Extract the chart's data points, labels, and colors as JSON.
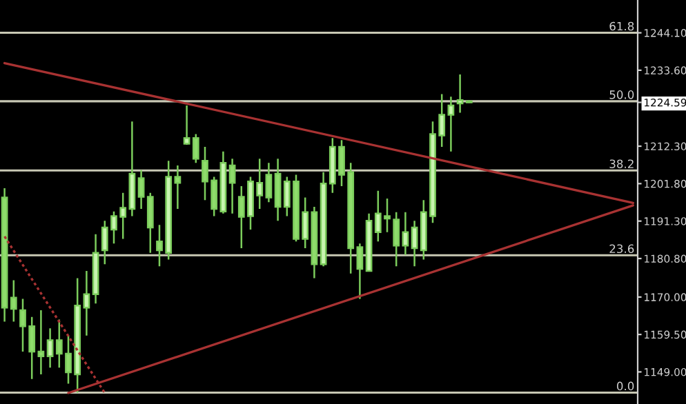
{
  "chart_data": {
    "type": "candlestick",
    "categories": [
      null,
      null,
      null,
      null,
      null,
      null,
      null,
      null,
      null,
      null,
      null,
      null,
      null,
      null,
      null,
      null,
      null,
      null,
      null,
      null,
      null,
      null,
      null,
      null,
      null,
      null,
      null,
      null,
      null,
      null,
      null,
      null,
      null,
      null,
      null,
      null,
      null,
      null,
      null,
      null,
      null,
      null,
      null,
      null,
      null,
      null,
      null,
      null,
      null,
      null,
      null,
      null,
      null,
      null,
      null,
      null,
      null,
      null,
      null,
      null,
      null,
      null,
      null,
      null,
      null,
      null,
      null,
      null,
      null,
      null
    ],
    "ohlc": [
      [
        1197.9,
        1200.5,
        1163.1,
        1167.0
      ],
      [
        1169.8,
        1174.7,
        1163.1,
        1166.7
      ],
      [
        1166.3,
        1169.5,
        1154.7,
        1161.8
      ],
      [
        1161.8,
        1164.4,
        1147.0,
        1154.7
      ],
      [
        1154.7,
        1166.3,
        1148.3,
        1153.4
      ],
      [
        1153.4,
        1161.2,
        1150.2,
        1157.9
      ],
      [
        1157.9,
        1163.7,
        1150.2,
        1154.1
      ],
      [
        1154.1,
        1159.2,
        1145.7,
        1148.9
      ],
      [
        1148.3,
        1175.3,
        1143.2,
        1167.6
      ],
      [
        1167.0,
        1177.3,
        1159.2,
        1170.8
      ],
      [
        1170.8,
        1187.6,
        1168.2,
        1182.4
      ],
      [
        1183.1,
        1191.4,
        1179.2,
        1189.5
      ],
      [
        1188.9,
        1194.0,
        1185.0,
        1192.7
      ],
      [
        1192.5,
        1199.2,
        1186.3,
        1195.0
      ],
      [
        1194.7,
        1219.2,
        1192.7,
        1204.6
      ],
      [
        1203.3,
        1205.6,
        1194.7,
        1198.1
      ],
      [
        1198.1,
        1199.2,
        1182.4,
        1189.5
      ],
      [
        1185.6,
        1190.2,
        1178.6,
        1183.1
      ],
      [
        1182.4,
        1208.2,
        1180.5,
        1203.7
      ],
      [
        1203.7,
        1206.9,
        1194.7,
        1202.0
      ],
      [
        1213.0,
        1223.7,
        1212.7,
        1214.6
      ],
      [
        1214.6,
        1215.7,
        1207.6,
        1208.8
      ],
      [
        1208.2,
        1212.1,
        1197.2,
        1202.4
      ],
      [
        1202.7,
        1203.7,
        1192.7,
        1194.7
      ],
      [
        1194.0,
        1210.8,
        1193.4,
        1207.6
      ],
      [
        1206.9,
        1208.8,
        1193.4,
        1202.0
      ],
      [
        1198.1,
        1201.1,
        1183.7,
        1192.5
      ],
      [
        1192.7,
        1203.7,
        1188.9,
        1202.4
      ],
      [
        1198.5,
        1208.8,
        1194.7,
        1202.0
      ],
      [
        1204.3,
        1207.6,
        1196.6,
        1197.9
      ],
      [
        1204.6,
        1208.8,
        1191.4,
        1195.3
      ],
      [
        1195.3,
        1203.7,
        1192.7,
        1202.4
      ],
      [
        1202.4,
        1204.3,
        1185.6,
        1186.3
      ],
      [
        1186.3,
        1197.9,
        1183.7,
        1193.8
      ],
      [
        1193.8,
        1195.3,
        1175.3,
        1179.2
      ],
      [
        1179.2,
        1205.0,
        1178.6,
        1201.8
      ],
      [
        1201.8,
        1214.6,
        1199.2,
        1212.1
      ],
      [
        1212.1,
        1214.0,
        1201.1,
        1204.3
      ],
      [
        1205.0,
        1207.6,
        1176.6,
        1183.7
      ],
      [
        1184.0,
        1185.0,
        1169.5,
        1177.9
      ],
      [
        1177.3,
        1193.4,
        1177.3,
        1191.4
      ],
      [
        1188.2,
        1199.8,
        1185.6,
        1193.4
      ],
      [
        1192.7,
        1197.6,
        1188.2,
        1192.0
      ],
      [
        1191.7,
        1193.8,
        1178.6,
        1184.4
      ],
      [
        1184.4,
        1193.8,
        1181.8,
        1188.2
      ],
      [
        1183.7,
        1191.4,
        1178.6,
        1189.5
      ],
      [
        1183.1,
        1197.2,
        1180.5,
        1193.8
      ],
      [
        1192.7,
        1219.2,
        1190.8,
        1215.7
      ],
      [
        1215.3,
        1226.9,
        1212.1,
        1221.1
      ],
      [
        1221.1,
        1226.2,
        1210.8,
        1223.7
      ],
      [
        1224.3,
        1232.4,
        1221.7,
        1225.2
      ],
      [
        1224.9,
        1225.2,
        1224.5,
        1224.59
      ],
      null,
      null,
      null,
      null,
      null,
      null,
      null,
      null,
      null,
      null,
      null,
      null,
      null,
      null,
      null,
      null,
      null,
      null
    ],
    "series": [
      {
        "type": "line",
        "color": "#a83232",
        "line_style": "solid",
        "values": [
          1235.6,
          null,
          null,
          null,
          null,
          null,
          null,
          null,
          null,
          null,
          null,
          null,
          null,
          null,
          null,
          null,
          null,
          null,
          null,
          null,
          null,
          null,
          null,
          null,
          null,
          null,
          null,
          null,
          null,
          null,
          null,
          null,
          null,
          null,
          null,
          null,
          null,
          null,
          null,
          null,
          null,
          null,
          null,
          null,
          null,
          null,
          null,
          null,
          null,
          null,
          null,
          null,
          null,
          null,
          null,
          null,
          null,
          null,
          null,
          null,
          null,
          null,
          null,
          null,
          null,
          null,
          null,
          null,
          null,
          1196.4
        ]
      },
      {
        "type": "line",
        "color": "#a83232",
        "line_style": "solid",
        "values": [
          null,
          null,
          null,
          null,
          null,
          null,
          null,
          1143.1,
          null,
          null,
          null,
          null,
          null,
          null,
          null,
          null,
          null,
          null,
          null,
          null,
          null,
          null,
          null,
          null,
          null,
          null,
          null,
          null,
          null,
          null,
          null,
          null,
          null,
          null,
          null,
          null,
          null,
          null,
          null,
          null,
          null,
          null,
          null,
          null,
          null,
          null,
          null,
          null,
          null,
          null,
          null,
          null,
          null,
          null,
          null,
          null,
          null,
          null,
          null,
          null,
          null,
          null,
          null,
          null,
          null,
          null,
          null,
          null,
          null,
          1195.7
        ]
      },
      {
        "type": "line",
        "color": "#a83232",
        "line_style": "dotted",
        "values": [
          1187.0,
          null,
          null,
          null,
          null,
          null,
          null,
          null,
          null,
          null,
          null,
          1143.1,
          null,
          null,
          null,
          null,
          null,
          null,
          null,
          null,
          null,
          null,
          null,
          null,
          null,
          null,
          null,
          null,
          null,
          null,
          null,
          null,
          null,
          null,
          null,
          null,
          null,
          null,
          null,
          null,
          null,
          null,
          null,
          null,
          null,
          null,
          null,
          null,
          null,
          null,
          null,
          null,
          null,
          null,
          null,
          null,
          null,
          null,
          null,
          null,
          null,
          null,
          null,
          null,
          null,
          null,
          null,
          null,
          null,
          null
        ]
      }
    ],
    "ref_lines": [
      {
        "axis": "y",
        "value": 1244.1,
        "color": "#c8c8b4"
      },
      {
        "axis": "y",
        "value": 1224.9,
        "color": "#c8c8b4"
      },
      {
        "axis": "y",
        "value": 1205.5,
        "color": "#c8c8b4"
      },
      {
        "axis": "y",
        "value": 1181.7,
        "color": "#c8c8b4"
      },
      {
        "axis": "y",
        "value": 1143.2,
        "color": "#c8c8b4"
      }
    ],
    "annotations": [
      {
        "text": "61.8",
        "y": 1244.1
      },
      {
        "text": "50.0",
        "y": 1224.9
      },
      {
        "text": "38.2",
        "y": 1205.5
      },
      {
        "text": "23.6",
        "y": 1181.7
      },
      {
        "text": "0.0",
        "y": 1143.2
      }
    ],
    "ylim": [
      1140.0,
      1253.3
    ],
    "yticks": [
      {
        "value": 1244.1,
        "label": "1244.10"
      },
      {
        "value": 1233.6,
        "label": "1233.60"
      },
      {
        "value": 1224.59,
        "label": "1224.59"
      },
      {
        "value": 1212.3,
        "label": "1212.30"
      },
      {
        "value": 1201.8,
        "label": "1201.80"
      },
      {
        "value": 1191.3,
        "label": "1191.30"
      },
      {
        "value": 1180.8,
        "label": "1180.80"
      },
      {
        "value": 1170.0,
        "label": "1170.00"
      },
      {
        "value": 1159.5,
        "label": "1159.50"
      },
      {
        "value": 1149.0,
        "label": "1149.00"
      }
    ],
    "tick_labels": "y",
    "grid": false,
    "legend": false
  }
}
